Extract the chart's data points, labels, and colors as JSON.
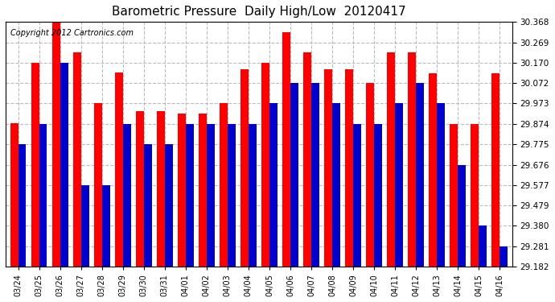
{
  "title": "Barometric Pressure  Daily High/Low  20120417",
  "copyright": "Copyright 2012 Cartronics.com",
  "categories": [
    "03/24",
    "03/25",
    "03/26",
    "03/27",
    "03/28",
    "03/29",
    "03/30",
    "03/31",
    "04/01",
    "04/02",
    "04/03",
    "04/04",
    "04/05",
    "04/06",
    "04/07",
    "04/08",
    "04/09",
    "04/10",
    "04/11",
    "04/12",
    "04/13",
    "04/14",
    "04/15",
    "04/16"
  ],
  "highs": [
    29.878,
    30.17,
    30.368,
    30.22,
    29.973,
    30.122,
    29.935,
    29.935,
    29.923,
    29.923,
    29.973,
    30.14,
    30.17,
    30.32,
    30.22,
    30.14,
    30.14,
    30.072,
    30.22,
    30.22,
    30.12,
    29.874,
    29.874,
    30.12
  ],
  "lows": [
    29.775,
    29.874,
    30.17,
    29.577,
    29.577,
    29.874,
    29.775,
    29.775,
    29.874,
    29.874,
    29.874,
    29.874,
    29.973,
    30.072,
    30.072,
    29.973,
    29.874,
    29.874,
    29.973,
    30.072,
    29.973,
    29.676,
    29.38,
    29.281
  ],
  "high_color": "#ff0000",
  "low_color": "#0000cc",
  "background_color": "#ffffff",
  "plot_bg_color": "#ffffff",
  "grid_color": "#aaaaaa",
  "ymin": 29.182,
  "ymax": 30.368,
  "yticks": [
    29.182,
    29.281,
    29.38,
    29.479,
    29.577,
    29.676,
    29.775,
    29.874,
    29.973,
    30.072,
    30.17,
    30.269,
    30.368
  ]
}
